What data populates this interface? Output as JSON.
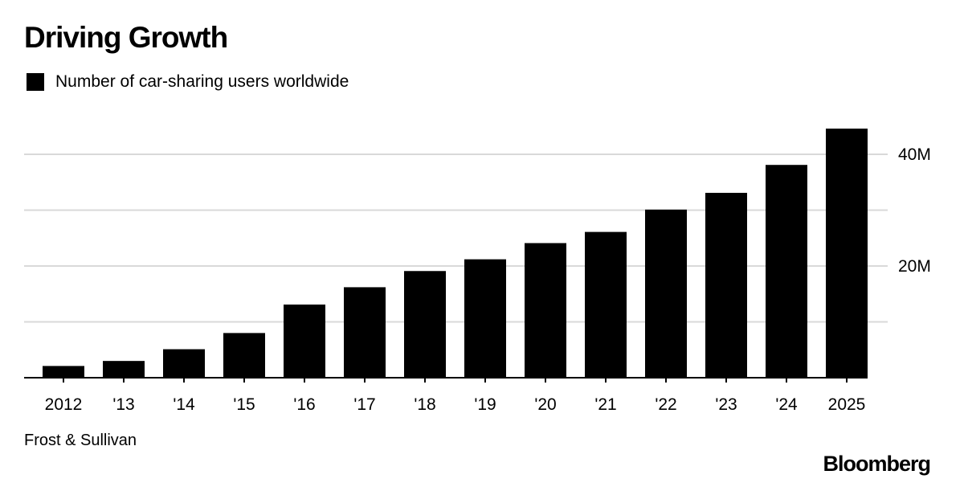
{
  "header": {
    "title": "Driving Growth"
  },
  "legend": {
    "label": "Number of car-sharing users worldwide"
  },
  "footer": {
    "source": "Frost & Sullivan",
    "brand": "Bloomberg"
  },
  "chart_data": {
    "type": "bar",
    "title": "Driving Growth",
    "categories": [
      "2012",
      "'13",
      "'14",
      "'15",
      "'16",
      "'17",
      "'18",
      "'19",
      "'20",
      "'21",
      "'22",
      "'23",
      "'24",
      "2025"
    ],
    "series": [
      {
        "name": "Number of car-sharing users worldwide",
        "values": [
          2.1,
          3.0,
          5.1,
          8.0,
          13.1,
          16.2,
          19.1,
          21.2,
          24.1,
          26.1,
          30.1,
          33.1,
          38.1,
          44.6
        ]
      }
    ],
    "ylim": [
      0,
      40
    ],
    "yticks": [
      {
        "value": 0,
        "label": ""
      },
      {
        "value": 10,
        "label": ""
      },
      {
        "value": 20,
        "label": "20M"
      },
      {
        "value": 30,
        "label": ""
      },
      {
        "value": 40,
        "label": "40M"
      }
    ],
    "grid": true,
    "legend_position": "top-left",
    "bar_color": "#000000",
    "grid_color": "#d9d9d9"
  }
}
